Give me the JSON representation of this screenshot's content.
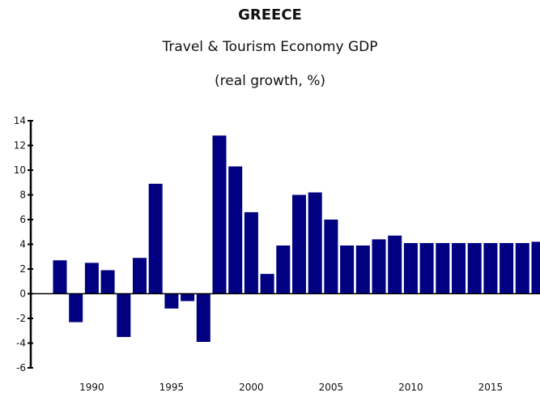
{
  "chart_data": {
    "type": "bar",
    "title": "GREECE",
    "subtitle": "Travel & Tourism Economy GDP",
    "subtitle2": "(real growth, %)",
    "xlabel": "",
    "ylabel": "",
    "ylim": [
      -6,
      14
    ],
    "yticks": [
      14,
      12,
      10,
      8,
      6,
      4,
      2,
      0,
      -2,
      -4,
      -6
    ],
    "xtick_labels": [
      "1990",
      "1995",
      "2000",
      "2005",
      "2010",
      "2015"
    ],
    "xtick_years": [
      1990,
      1995,
      2000,
      2005,
      2010,
      2015
    ],
    "bar_color": "#000080",
    "categories": [
      1988,
      1989,
      1990,
      1991,
      1992,
      1993,
      1994,
      1995,
      1996,
      1997,
      1998,
      1999,
      2000,
      2001,
      2002,
      2003,
      2004,
      2005,
      2006,
      2007,
      2008,
      2009,
      2010,
      2011,
      2012,
      2013,
      2014,
      2015,
      2016,
      2017,
      2018
    ],
    "values": [
      2.7,
      -2.3,
      2.5,
      1.9,
      -3.5,
      2.9,
      8.9,
      -1.2,
      -0.6,
      -3.9,
      12.8,
      10.3,
      6.6,
      1.6,
      3.9,
      8.0,
      8.2,
      6.0,
      3.9,
      3.9,
      4.4,
      4.7,
      4.1,
      4.1,
      4.1,
      4.1,
      4.1,
      4.1,
      4.1,
      4.1,
      4.2
    ],
    "grid": false,
    "legend": "none"
  }
}
